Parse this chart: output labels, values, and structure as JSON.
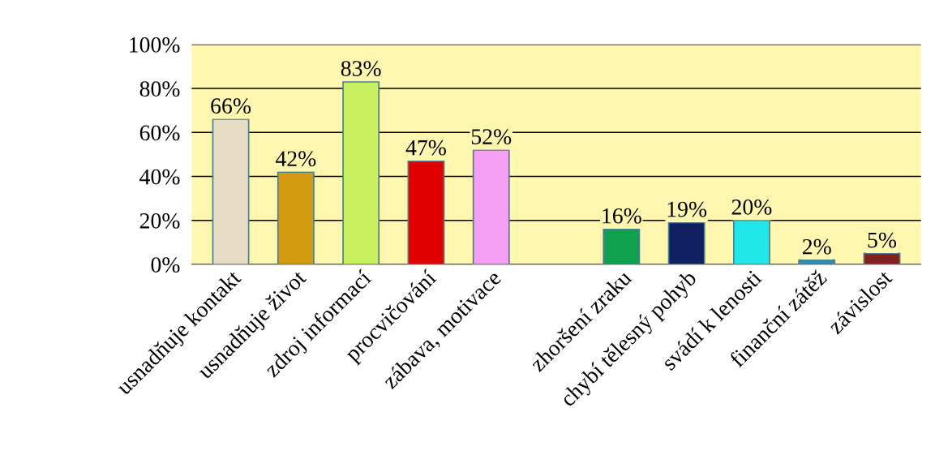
{
  "chart_data": {
    "type": "bar",
    "categories": [
      "usnadňuje kontakt",
      "usnadňuje život",
      "zdroj informací",
      "procvičování",
      "zábava, motivace",
      null,
      "zhoršení zraku",
      "chybí tělesný pohyb",
      "svádí k lenosti",
      "finanční zátěž",
      "závislost"
    ],
    "values": [
      66,
      42,
      83,
      47,
      52,
      null,
      16,
      19,
      20,
      2,
      5
    ],
    "value_labels": [
      "66%",
      "42%",
      "83%",
      "47%",
      "52%",
      null,
      "16%",
      "19%",
      "20%",
      "2%",
      "5%"
    ],
    "colors": [
      "#e6dcc4",
      "#d49a10",
      "#c8f060",
      "#e00000",
      "#f4a0f4",
      null,
      "#10a050",
      "#102060",
      "#20e8e8",
      "#2a8fb0",
      "#802020"
    ],
    "ylim": [
      0,
      100
    ],
    "yticks": [
      {
        "value": 0,
        "label": "0%"
      },
      {
        "value": 20,
        "label": "20%"
      },
      {
        "value": 40,
        "label": "40%"
      },
      {
        "value": 60,
        "label": "60%"
      },
      {
        "value": 80,
        "label": "80%"
      },
      {
        "value": 100,
        "label": "100%"
      }
    ],
    "grid": "y"
  }
}
